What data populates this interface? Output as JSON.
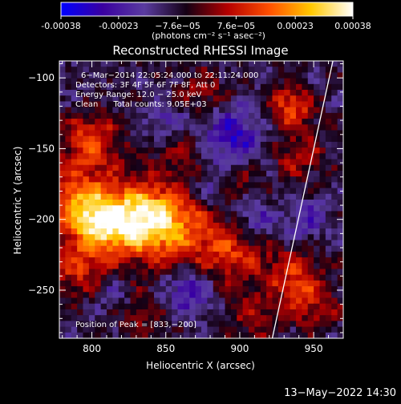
{
  "chart_data": {
    "type": "heatmap",
    "title": "Reconstructed RHESSI Image",
    "xlabel": "Heliocentric X (arcsec)",
    "ylabel": "Heliocentric Y (arcsec)",
    "xlim": [
      778,
      970
    ],
    "ylim": [
      -284,
      -88
    ],
    "xticks": [
      800,
      850,
      900,
      950
    ],
    "yticks": [
      -100,
      -150,
      -200,
      -250
    ],
    "colorbar": {
      "ticks": [
        "-0.00038",
        "-0.00023",
        "−7.6e−05",
        "7.6e−05",
        "0.00023",
        "0.00038"
      ],
      "tick_values": [
        -0.00038,
        -0.00023,
        -7.6e-05,
        7.6e-05,
        0.00023,
        0.00038
      ],
      "range": [
        -0.00038,
        0.00038
      ],
      "units": "(photons cm⁻² s⁻¹ asec⁻²)",
      "colormap": [
        "#0000ff",
        "#3a00a0",
        "#5a3ca0",
        "#140014",
        "#b40000",
        "#ff5000",
        "#ffc800",
        "#ffffff"
      ]
    },
    "annotations": {
      "time_range": "6−Mar−2014 22:05:24.000 to 22:11:24.000",
      "detectors": "Detectors: 3F 4F 5F 6F 7F 8F, Att 0",
      "energy_range": "Energy Range: 12.0 − 25.0 keV",
      "method": "Clean      Total counts: 9.05E+03",
      "peak": "Position of Peak = [833,−200]"
    },
    "peak": [
      833,
      -200
    ],
    "limb_line": [
      [
        922,
        -284
      ],
      [
        963,
        -88
      ]
    ],
    "hot_regions": [
      {
        "x": 833,
        "y": -200,
        "sigma": 18,
        "value": 0.00038
      },
      {
        "x": 805,
        "y": -203,
        "sigma": 14,
        "value": 0.0003
      },
      {
        "x": 790,
        "y": -185,
        "sigma": 16,
        "value": 0.00024
      },
      {
        "x": 860,
        "y": -205,
        "sigma": 20,
        "value": 0.0002
      },
      {
        "x": 800,
        "y": -145,
        "sigma": 14,
        "value": 0.00022
      },
      {
        "x": 790,
        "y": -235,
        "sigma": 14,
        "value": 0.00018
      },
      {
        "x": 935,
        "y": -120,
        "sigma": 10,
        "value": 0.00024
      },
      {
        "x": 940,
        "y": -155,
        "sigma": 12,
        "value": 0.00015
      },
      {
        "x": 895,
        "y": -225,
        "sigma": 16,
        "value": 0.00018
      },
      {
        "x": 935,
        "y": -240,
        "sigma": 14,
        "value": 0.00017
      },
      {
        "x": 950,
        "y": -260,
        "sigma": 12,
        "value": 0.00015
      },
      {
        "x": 875,
        "y": -110,
        "sigma": 12,
        "value": 0.00012
      },
      {
        "x": 860,
        "y": -150,
        "sigma": 12,
        "value": 0.0001
      },
      {
        "x": 830,
        "y": -265,
        "sigma": 14,
        "value": 0.0001
      },
      {
        "x": 900,
        "y": -175,
        "sigma": 10,
        "value": 9e-05
      },
      {
        "x": 910,
        "y": -270,
        "sigma": 12,
        "value": 0.00012
      }
    ],
    "cold_regions": [
      {
        "x": 895,
        "y": -140,
        "sigma": 14,
        "value": -0.0002
      },
      {
        "x": 865,
        "y": -250,
        "sigma": 12,
        "value": -0.00018
      },
      {
        "x": 910,
        "y": -200,
        "sigma": 10,
        "value": -0.00014
      },
      {
        "x": 850,
        "y": -130,
        "sigma": 10,
        "value": -0.00012
      },
      {
        "x": 815,
        "y": -255,
        "sigma": 10,
        "value": -0.00012
      },
      {
        "x": 945,
        "y": -200,
        "sigma": 10,
        "value": -0.00013
      },
      {
        "x": 880,
        "y": -180,
        "sigma": 10,
        "value": -0.00012
      }
    ]
  },
  "footer": {
    "date": "13−May−2022 14:30"
  }
}
